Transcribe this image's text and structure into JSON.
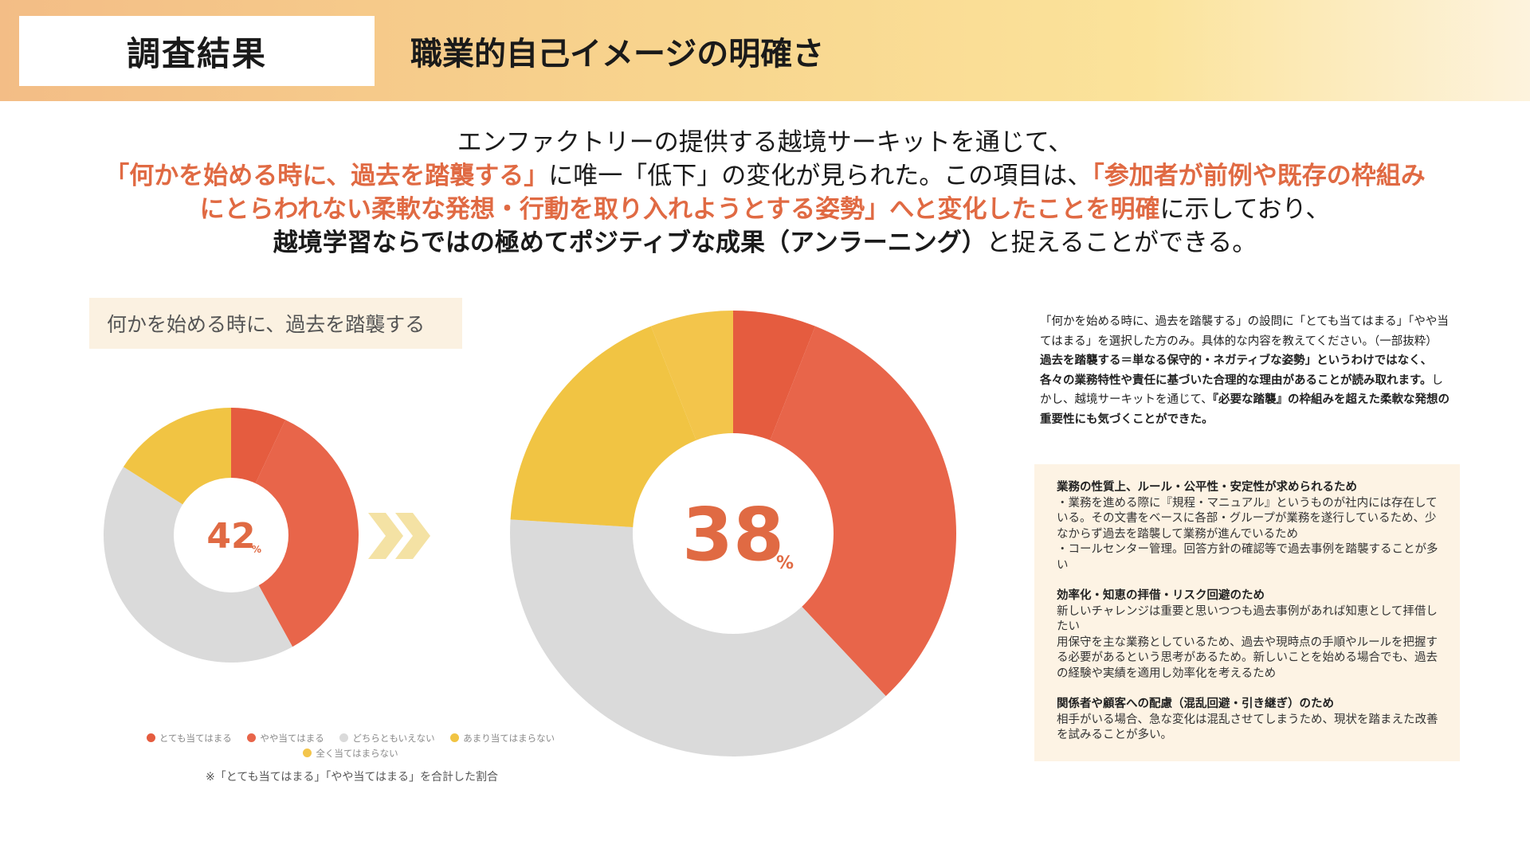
{
  "header": {
    "section_label": "調査結果",
    "title": "職業的自己イメージの明確さ"
  },
  "summary": {
    "line1": "エンファクトリーの提供する越境サーキットを通じて、",
    "line2_hl": "「何かを始める時に、過去を踏襲する」",
    "line2_rest": "に唯一「低下」の変化が見られた。この項目は、",
    "line2_hl2": "「参加者が前例や既存の枠組み",
    "line3_hl": "にとらわれない柔軟な発想・行動を取り入れようとする姿勢」へと変化したことを明確",
    "line3_rest": "に示しており、",
    "line4_bold": "越境学習ならではの極めてポジティブな成果（アンラーニング）",
    "line4_rest": "と捉えることができる。"
  },
  "chart_label": "何かを始める時に、過去を踏襲する",
  "chart_data": [
    {
      "type": "pie",
      "center_value": "42",
      "center_unit": "%",
      "categories": [
        "とても当てはまる",
        "やや当てはまる",
        "どちらともいえない",
        "あまり当てはまらない",
        "全く当てはまらない"
      ],
      "values": [
        7,
        35,
        42,
        16,
        0
      ]
    },
    {
      "type": "pie",
      "center_value": "38",
      "center_unit": "%",
      "categories": [
        "とても当てはまる",
        "やや当てはまる",
        "どちらともいえない",
        "あまり当てはまらない",
        "全く当てはまらない"
      ],
      "values": [
        6,
        32,
        38,
        18,
        6
      ]
    }
  ],
  "legend": [
    {
      "label": "とても当てはまる",
      "color": "#e55c3f"
    },
    {
      "label": "やや当てはまる",
      "color": "#e8654a"
    },
    {
      "label": "どちらともいえない",
      "color": "#dadada"
    },
    {
      "label": "あまり当てはまらない",
      "color": "#f1c443"
    },
    {
      "label": "全く当てはまらない",
      "color": "#f3c54b"
    }
  ],
  "colors": {
    "slices": [
      "#e55c3f",
      "#e8654a",
      "#dadada",
      "#f1c443",
      "#f3c54b"
    ],
    "arrow": "#f4e2a4",
    "center_text": "#e06a43"
  },
  "note": "※「とても当てはまる」「やや当てはまる」を合計した割合",
  "quote": {
    "intro": "「何かを始める時に、過去を踏襲する」の設問に「とても当てはまる」「やや当てはまる」を選択した方のみ。具体的な内容を教えてください。（一部抜粋）",
    "bold": "過去を踏襲する＝単なる保守的・ネガティブな姿勢」というわけではなく、各々の業務特性や責任に基づいた合理的な理由があることが読み取れます。",
    "mid": "しかし、越境サーキットを通じて、",
    "bold2": "『必要な踏襲』の枠組みを超えた柔軟な発想の重要性にも気づくことができた。"
  },
  "reasons": [
    {
      "title": "業務の性質上、ルール・公平性・安定性が求められるため",
      "lines": [
        "・業務を進める際に『規程・マニュアル』というものが社内には存在している。その文書をベースに各部・グループが業務を遂行しているため、少なからず過去を踏襲して業務が進んでいるため",
        "・コールセンター管理。回答方針の確認等で過去事例を踏襲することが多い"
      ]
    },
    {
      "title": "効率化・知恵の拝借・リスク回避のため",
      "lines": [
        "新しいチャレンジは重要と思いつつも過去事例があれば知恵として拝借したい",
        "用保守を主な業務としているため、過去や現時点の手順やルールを把握する必要があるという思考があるため。新しいことを始める場合でも、過去の経験や実績を適用し効率化を考えるため"
      ]
    },
    {
      "title": "関係者や顧客への配慮（混乱回避・引き継ぎ）のため",
      "lines": [
        "相手がいる場合、急な変化は混乱させてしまうため、現状を踏まえた改善を試みることが多い。"
      ]
    }
  ]
}
